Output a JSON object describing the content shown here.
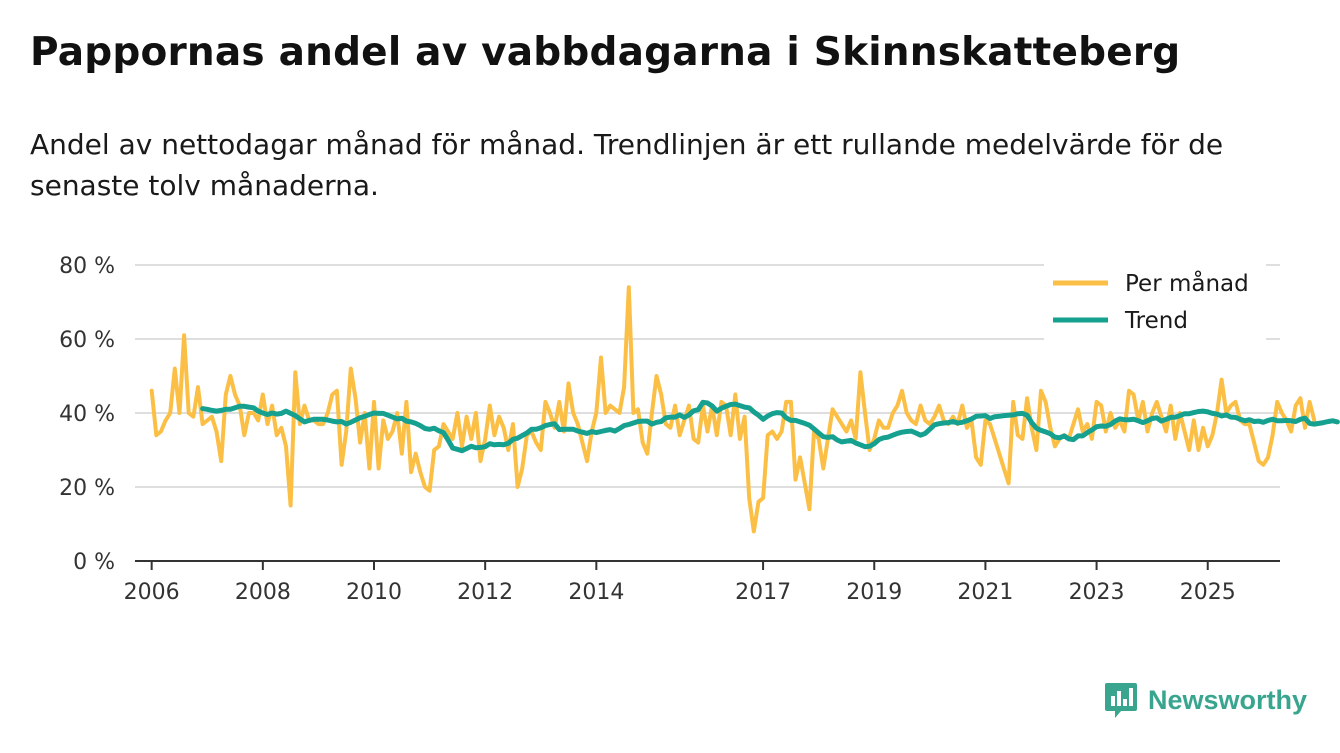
{
  "title": "Pappornas andel av vabbdagarna i Skinnskatteberg",
  "subtitle": "Andel av nettodagar månad för månad. Trendlinjen är ett rullande medelvärde för de senaste tolv månaderna.",
  "brand": {
    "name": "Newsworthy",
    "icon": "newsworthy-logo-icon",
    "color": "#3aa58f"
  },
  "chart_data": {
    "type": "line",
    "title": "Pappornas andel av vabbdagarna i Skinnskatteberg",
    "xlabel": "",
    "ylabel": "",
    "ylim": [
      0,
      80
    ],
    "xlim": [
      2005.7,
      2026.3
    ],
    "grid": true,
    "legend_position": "top-right",
    "y_ticks": [
      0,
      20,
      40,
      60,
      80
    ],
    "y_tick_labels": [
      "0 %",
      "20 %",
      "40 %",
      "60 %",
      "80 %"
    ],
    "x_ticks": [
      2006,
      2008,
      2010,
      2012,
      2014,
      2017,
      2019,
      2021,
      2023,
      2025
    ],
    "x_tick_labels": [
      "2006",
      "2008",
      "2010",
      "2012",
      "2014",
      "2017",
      "2019",
      "2021",
      "2023",
      "2025"
    ],
    "series": [
      {
        "name": "Per månad",
        "color": "#fbbf45",
        "x_start": 2006.0,
        "x_step": 0.0833333,
        "values": [
          46,
          34,
          35,
          38,
          40,
          52,
          40,
          61,
          40,
          39,
          47,
          37,
          38,
          39,
          35,
          27,
          45,
          50,
          45,
          42,
          34,
          40,
          40,
          38,
          45,
          37,
          42,
          34,
          36,
          31,
          15,
          51,
          37,
          42,
          38,
          38,
          37,
          37,
          40,
          45,
          46,
          26,
          35,
          52,
          44,
          32,
          40,
          25,
          43,
          25,
          38,
          33,
          35,
          40,
          29,
          43,
          24,
          29,
          24,
          20,
          19,
          30,
          31,
          37,
          35,
          33,
          40,
          31,
          39,
          33,
          40,
          27,
          33,
          42,
          34,
          39,
          36,
          30,
          37,
          20,
          25,
          34,
          35,
          32,
          30,
          43,
          40,
          36,
          43,
          35,
          48,
          40,
          37,
          32,
          27,
          35,
          40,
          55,
          40,
          42,
          41,
          40,
          47,
          74,
          40,
          41,
          32,
          29,
          40,
          50,
          45,
          37,
          36,
          42,
          34,
          38,
          42,
          33,
          32,
          42,
          35,
          42,
          34,
          43,
          42,
          34,
          45,
          33,
          39,
          17,
          8,
          16,
          17,
          34,
          35,
          33,
          35,
          43,
          43,
          22,
          28,
          21,
          14,
          35,
          33,
          25,
          33,
          41,
          39,
          37,
          35,
          38,
          33,
          51,
          40,
          30,
          33,
          38,
          36,
          36,
          40,
          42,
          46,
          40,
          38,
          37,
          42,
          38,
          37,
          39,
          42,
          38,
          37,
          39,
          37,
          42,
          36,
          38,
          28,
          26,
          38,
          37,
          33,
          29,
          25,
          21,
          43,
          34,
          33,
          44,
          36,
          30,
          46,
          43,
          36,
          31,
          33,
          34,
          33,
          37,
          41,
          35,
          37,
          33,
          43,
          42,
          35,
          40,
          36,
          38,
          35,
          46,
          45,
          38,
          43,
          35,
          40,
          43,
          39,
          35,
          42,
          33,
          40,
          35,
          30,
          38,
          30,
          36,
          31,
          34,
          40,
          49,
          40,
          42,
          43,
          38,
          37,
          37,
          32,
          27,
          26,
          28,
          34,
          43,
          40,
          38,
          35,
          42,
          44,
          36,
          43,
          38
        ]
      },
      {
        "name": "Trend",
        "color": "#16a08f",
        "x_start": 2006.9167,
        "x_step": 0.0833333,
        "values": [
          41.2,
          41.0,
          40.7,
          40.5,
          40.7,
          41.0,
          41.0,
          41.4,
          41.8,
          41.8,
          41.6,
          41.4,
          40.5,
          40.0,
          39.6,
          40.0,
          39.7,
          39.9,
          40.5,
          39.9,
          39.3,
          38.4,
          37.6,
          38.0,
          38.3,
          38.3,
          38.3,
          38.1,
          37.8,
          37.6,
          37.7,
          37.0,
          37.5,
          38.1,
          38.7,
          39.1,
          39.6,
          40.0,
          39.9,
          39.9,
          39.4,
          38.9,
          38.4,
          38.6,
          37.8,
          37.6,
          37.2,
          36.6,
          35.8,
          35.6,
          35.9,
          35.2,
          34.7,
          32.7,
          30.5,
          30.2,
          29.8,
          30.4,
          31.0,
          30.6,
          30.7,
          30.9,
          31.7,
          31.4,
          31.5,
          31.4,
          31.8,
          32.9,
          33.2,
          33.9,
          34.6,
          35.6,
          35.6,
          36.0,
          36.6,
          36.9,
          37.1,
          35.5,
          35.6,
          35.6,
          35.6,
          35.1,
          34.8,
          34.5,
          35.0,
          34.7,
          35.0,
          35.3,
          35.5,
          35.1,
          35.8,
          36.6,
          36.9,
          37.3,
          37.7,
          37.8,
          37.8,
          37.0,
          37.5,
          37.7,
          38.7,
          38.9,
          38.9,
          39.5,
          38.8,
          39.5,
          40.6,
          40.9,
          42.9,
          42.7,
          41.9,
          40.5,
          41.3,
          41.8,
          42.3,
          42.4,
          42.0,
          41.6,
          41.4,
          40.3,
          39.4,
          38.3,
          39.2,
          39.8,
          40.1,
          40.0,
          38.7,
          38.0,
          38.0,
          37.6,
          37.2,
          36.7,
          35.7,
          34.6,
          33.6,
          33.4,
          33.6,
          32.7,
          32.2,
          32.4,
          32.6,
          31.9,
          31.4,
          30.9,
          31.0,
          31.7,
          32.8,
          33.3,
          33.5,
          34.0,
          34.5,
          34.8,
          35.0,
          35.1,
          34.6,
          34.0,
          34.5,
          35.6,
          36.8,
          37.1,
          37.3,
          37.4,
          37.7,
          37.3,
          37.5,
          37.9,
          38.4,
          39.1,
          39.2,
          39.3,
          38.5,
          39.0,
          39.1,
          39.3,
          39.4,
          39.5,
          39.8,
          39.9,
          39.4,
          37.4,
          35.9,
          35.3,
          34.9,
          34.4,
          33.5,
          33.3,
          33.8,
          33.0,
          32.8,
          33.8,
          33.8,
          34.7,
          35.4,
          36.3,
          36.5,
          36.4,
          36.9,
          37.8,
          38.4,
          38.2,
          38.2,
          38.3,
          37.9,
          37.4,
          37.9,
          38.5,
          38.7,
          37.8,
          38.3,
          38.8,
          38.9,
          39.3,
          39.8,
          39.8,
          40.1,
          40.4,
          40.5,
          40.3,
          39.9,
          39.7,
          39.2,
          39.5,
          38.9,
          38.8,
          38.3,
          37.9,
          38.2,
          37.7,
          37.8,
          37.5,
          38.0,
          38.3,
          37.9,
          37.9,
          38.0,
          37.9,
          37.7,
          38.3,
          38.6,
          37.2,
          37.0,
          37.2,
          37.4,
          37.7,
          37.9,
          37.6
        ]
      }
    ]
  }
}
